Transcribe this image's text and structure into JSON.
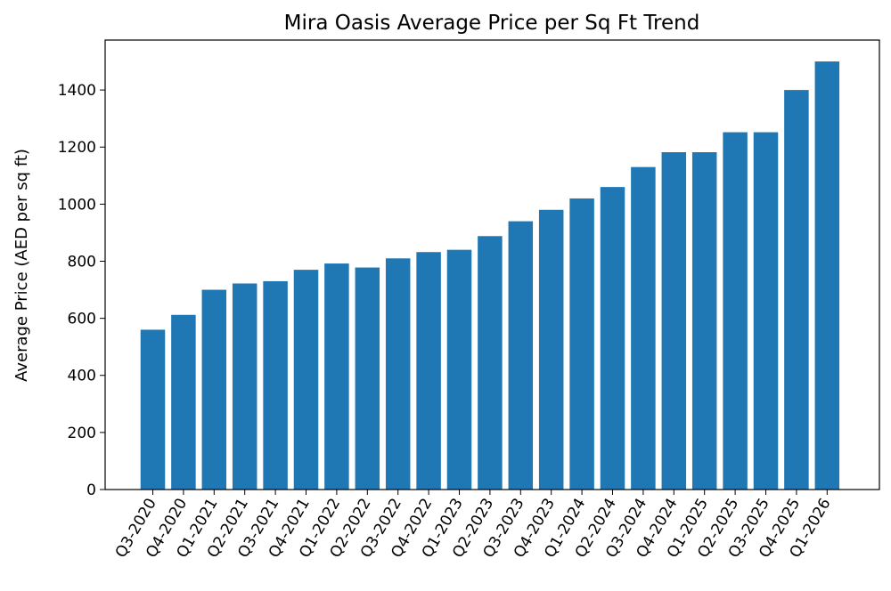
{
  "chart_data": {
    "type": "bar",
    "title": "Mira Oasis Average Price per Sq Ft Trend",
    "xlabel": "",
    "ylabel": "Average Price (AED per sq ft)",
    "categories": [
      "Q3-2020",
      "Q4-2020",
      "Q1-2021",
      "Q2-2021",
      "Q3-2021",
      "Q4-2021",
      "Q1-2022",
      "Q2-2022",
      "Q3-2022",
      "Q4-2022",
      "Q1-2023",
      "Q2-2023",
      "Q3-2023",
      "Q4-2023",
      "Q1-2024",
      "Q2-2024",
      "Q3-2024",
      "Q4-2024",
      "Q1-2025",
      "Q2-2025",
      "Q3-2025",
      "Q4-2025",
      "Q1-2026"
    ],
    "values": [
      560,
      612,
      700,
      722,
      730,
      770,
      792,
      778,
      810,
      832,
      840,
      888,
      940,
      980,
      1020,
      1060,
      1130,
      1182,
      1182,
      1252,
      1252,
      1400,
      1500
    ],
    "ylim": [
      0,
      1575
    ],
    "yticks": [
      0,
      200,
      400,
      600,
      800,
      1000,
      1200,
      1400
    ],
    "bar_color": "#1f77b4",
    "grid": false,
    "legend": "none"
  }
}
